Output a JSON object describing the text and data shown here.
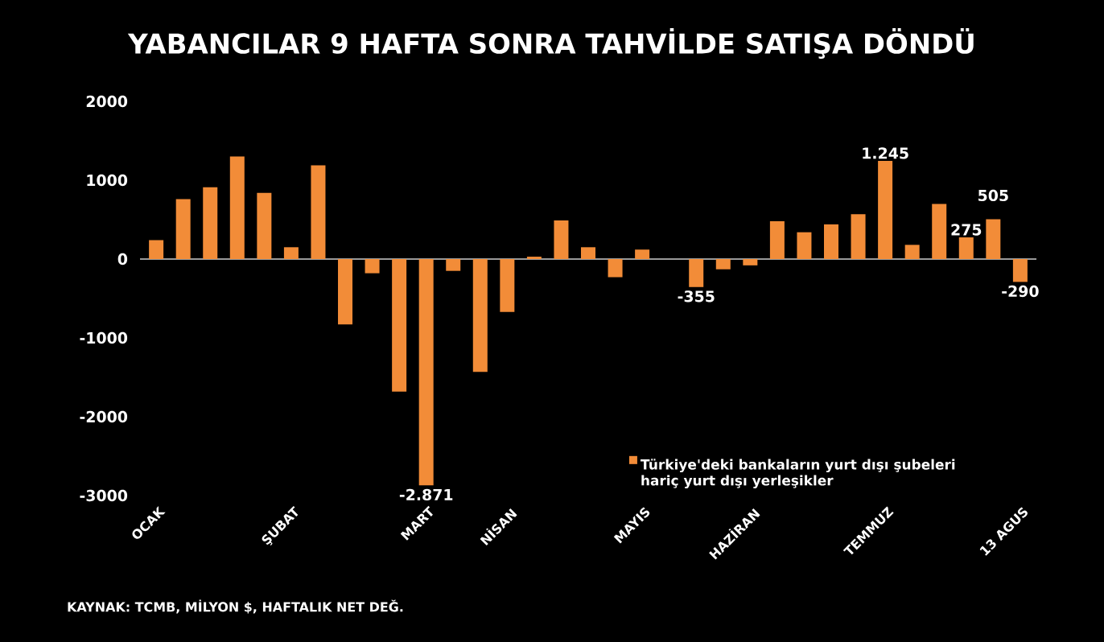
{
  "chart_data": {
    "type": "bar",
    "title": "YABANCILAR 9 HAFTA SONRA TAHVİLDE SATIŞA DÖNDÜ",
    "categories": [
      "OCAK",
      null,
      null,
      null,
      null,
      "ŞUBAT",
      null,
      null,
      null,
      null,
      "MART",
      null,
      null,
      "NİSAN",
      null,
      null,
      null,
      null,
      "MAYIS",
      null,
      null,
      null,
      "HAZİRAN",
      null,
      null,
      null,
      null,
      "TEMMUZ",
      null,
      null,
      null,
      null,
      "13 AGUS"
    ],
    "series": [
      {
        "name": "Türkiye'deki bankaların yurt dışı şubeleri hariç yurt dışı yerleşikler",
        "color": "#f28c38",
        "values": [
          240,
          760,
          910,
          1300,
          840,
          150,
          1190,
          -830,
          -180,
          -1680,
          -2871,
          -150,
          -1430,
          -670,
          30,
          490,
          150,
          -230,
          120,
          0,
          -355,
          -130,
          -80,
          480,
          340,
          440,
          570,
          1245,
          180,
          700,
          275,
          505,
          -290
        ],
        "value_labels": [
          null,
          null,
          null,
          null,
          null,
          null,
          null,
          null,
          null,
          null,
          "-2.871",
          null,
          null,
          null,
          null,
          null,
          null,
          null,
          null,
          null,
          "-355",
          null,
          null,
          null,
          null,
          null,
          null,
          "1.245",
          null,
          null,
          "275",
          "505",
          "-290"
        ]
      }
    ],
    "ylim": [
      -3000,
      2000
    ],
    "yticks": [
      -3000,
      -2000,
      -1000,
      0,
      1000,
      2000
    ],
    "legend": "bottom right",
    "annotations": [
      "KAYNAK: TCMB, MİLYON $, HAFTALIK NET DEĞ."
    ]
  }
}
